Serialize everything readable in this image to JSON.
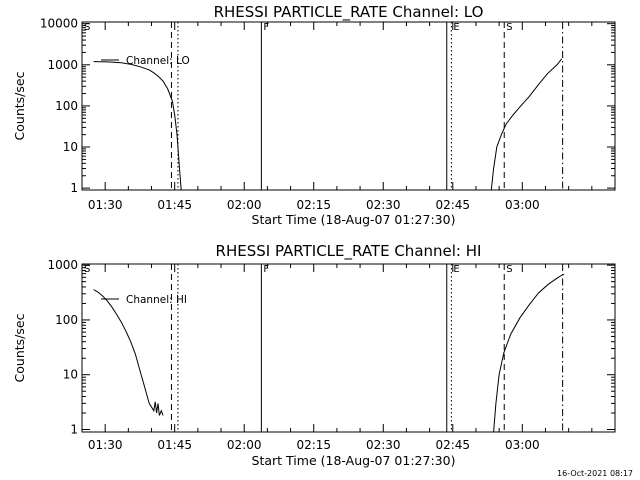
{
  "footer": {
    "timestamp": "16-Oct-2021 08:17"
  },
  "chart_data": [
    {
      "type": "line",
      "title": "RHESSI PARTICLE_RATE Channel: LO",
      "xlabel": "Start Time (18-Aug-07 01:27:30)",
      "ylabel": "Counts/sec",
      "yscale": "log",
      "xlim_min": [
        -2.5,
        112.5
      ],
      "ylim": [
        0.9,
        11000
      ],
      "x_ticks": [
        2.5,
        17.5,
        32.5,
        47.5,
        62.5,
        77.5,
        92.5
      ],
      "x_tick_labels": [
        "01:30",
        "01:45",
        "02:00",
        "02:15",
        "02:30",
        "02:45",
        "03:00"
      ],
      "y_ticks": [
        1,
        10,
        100,
        1000,
        10000
      ],
      "y_tick_labels": [
        "1",
        "10",
        "100",
        "1000",
        "10000"
      ],
      "legend": "top-left",
      "series": [
        {
          "name": "Channel: LO",
          "segments": [
            [
              [
                0,
                1200
              ],
              [
                3,
                1180
              ],
              [
                6,
                1120
              ],
              [
                8,
                1030
              ],
              [
                10,
                900
              ],
              [
                12,
                750
              ],
              [
                13,
                640
              ],
              [
                14,
                520
              ],
              [
                15,
                400
              ],
              [
                16,
                260
              ],
              [
                17,
                130
              ],
              [
                17.5,
                60
              ],
              [
                18,
                20
              ],
              [
                18.5,
                3.5
              ],
              [
                18.9,
                0.9
              ]
            ],
            [
              [
                85.8,
                0.9
              ],
              [
                86.3,
                3
              ],
              [
                87,
                10
              ],
              [
                88,
                20
              ],
              [
                89,
                36
              ],
              [
                90.5,
                60
              ],
              [
                92,
                95
              ],
              [
                94,
                170
              ],
              [
                96,
                330
              ],
              [
                98,
                620
              ],
              [
                100,
                1000
              ],
              [
                101,
                1400
              ]
            ]
          ]
        }
      ],
      "markers": [
        {
          "label": "S",
          "x": -2.5,
          "style": "label"
        },
        {
          "label": "",
          "x": 16.8,
          "style": "dashed"
        },
        {
          "label": "",
          "x": 18.2,
          "style": "dotted"
        },
        {
          "label": "F",
          "x": 36.2,
          "style": "solid"
        },
        {
          "label": "",
          "x": 76.2,
          "style": "solid"
        },
        {
          "label": "E",
          "x": 77.2,
          "style": "dotted"
        },
        {
          "label": "S",
          "x": 88.6,
          "style": "dashed"
        },
        {
          "label": "",
          "x": 101.2,
          "style": "dashdot"
        }
      ]
    },
    {
      "type": "line",
      "title": "RHESSI PARTICLE_RATE Channel: HI",
      "xlabel": "Start Time (18-Aug-07 01:27:30)",
      "ylabel": "Counts/sec",
      "yscale": "log",
      "xlim_min": [
        -2.5,
        112.5
      ],
      "ylim": [
        0.9,
        1050
      ],
      "x_ticks": [
        2.5,
        17.5,
        32.5,
        47.5,
        62.5,
        77.5,
        92.5
      ],
      "x_tick_labels": [
        "01:30",
        "01:45",
        "02:00",
        "02:15",
        "02:30",
        "02:45",
        "03:00"
      ],
      "y_ticks": [
        1,
        10,
        100,
        1000
      ],
      "y_tick_labels": [
        "1",
        "10",
        "100",
        "1000"
      ],
      "legend": "top-left",
      "series": [
        {
          "name": "Channel: HI",
          "segments": [
            [
              [
                0,
                360
              ],
              [
                1,
                320
              ],
              [
                2,
                270
              ],
              [
                3,
                220
              ],
              [
                4,
                170
              ],
              [
                5,
                125
              ],
              [
                6,
                90
              ],
              [
                7,
                62
              ],
              [
                8,
                40
              ],
              [
                9,
                24
              ],
              [
                10,
                12
              ],
              [
                11,
                6
              ],
              [
                12,
                3
              ],
              [
                13,
                2.2
              ],
              [
                13.3,
                3.2
              ],
              [
                13.6,
                2.0
              ],
              [
                13.9,
                3.0
              ],
              [
                14.2,
                1.8
              ],
              [
                14.6,
                2.2
              ],
              [
                15,
                1.8
              ]
            ]
          ]
        },
        {
          "name": "",
          "segments": [
            [
              [
                86.3,
                0.9
              ],
              [
                86.8,
                3
              ],
              [
                87.5,
                10
              ],
              [
                88.5,
                25
              ],
              [
                90,
                55
              ],
              [
                92,
                110
              ],
              [
                94,
                190
              ],
              [
                96,
                310
              ],
              [
                98,
                440
              ],
              [
                100,
                580
              ],
              [
                101.5,
                690
              ]
            ]
          ]
        }
      ],
      "markers": [
        {
          "label": "S",
          "x": -2.5,
          "style": "label"
        },
        {
          "label": "",
          "x": 16.8,
          "style": "dashed"
        },
        {
          "label": "",
          "x": 18.2,
          "style": "dotted"
        },
        {
          "label": "F",
          "x": 36.2,
          "style": "solid"
        },
        {
          "label": "",
          "x": 76.2,
          "style": "solid"
        },
        {
          "label": "E",
          "x": 77.2,
          "style": "dotted"
        },
        {
          "label": "S",
          "x": 88.6,
          "style": "dashed"
        },
        {
          "label": "",
          "x": 101.2,
          "style": "dashdot"
        }
      ]
    }
  ]
}
